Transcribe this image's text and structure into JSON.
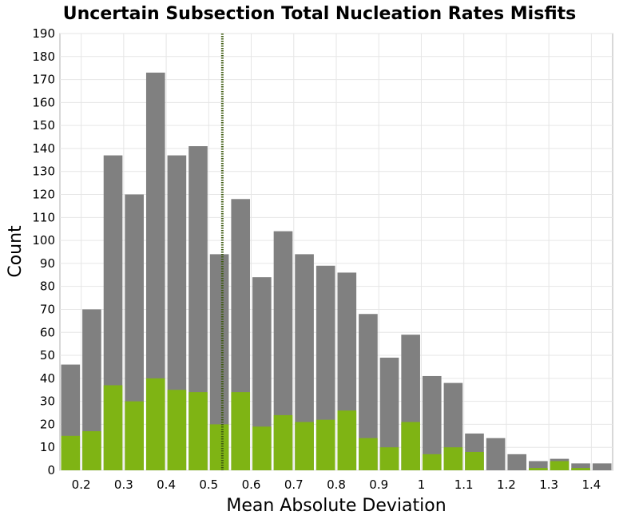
{
  "chart_data": {
    "type": "bar",
    "title": "Uncertain Subsection Total Nucleation Rates Misfits",
    "xlabel": "Mean Absolute Deviation",
    "ylabel": "Count",
    "xlim": [
      0.15,
      1.45
    ],
    "ylim": [
      0,
      190
    ],
    "bin_width": 0.05,
    "x_ticks": [
      0.2,
      0.3,
      0.4,
      0.5,
      0.6,
      0.7,
      0.8,
      0.9,
      1,
      1.1,
      1.2,
      1.3,
      1.4
    ],
    "x_tick_labels": [
      "0.2",
      "0.3",
      "0.4",
      "0.5",
      "0.6",
      "0.7",
      "0.8",
      "0.9",
      "1",
      "1.1",
      "1.2",
      "1.3",
      "1.4"
    ],
    "y_ticks": [
      0,
      10,
      20,
      30,
      40,
      50,
      60,
      70,
      80,
      90,
      100,
      110,
      120,
      130,
      140,
      150,
      160,
      170,
      180,
      190
    ],
    "grid": true,
    "bin_centers": [
      0.175,
      0.225,
      0.275,
      0.325,
      0.375,
      0.425,
      0.475,
      0.525,
      0.575,
      0.625,
      0.675,
      0.725,
      0.775,
      0.825,
      0.875,
      0.925,
      0.975,
      1.025,
      1.075,
      1.125,
      1.175,
      1.225,
      1.275,
      1.325,
      1.375,
      1.425
    ],
    "series": [
      {
        "color": "#808080",
        "values": [
          46,
          70,
          137,
          120,
          173,
          137,
          141,
          94,
          118,
          84,
          104,
          94,
          89,
          86,
          68,
          49,
          59,
          41,
          38,
          16,
          14,
          7,
          4,
          5,
          3,
          3
        ]
      },
      {
        "color": "#7fb414",
        "values": [
          15,
          17,
          37,
          30,
          40,
          35,
          34,
          20,
          34,
          19,
          24,
          21,
          22,
          26,
          14,
          10,
          21,
          7,
          10,
          8,
          0,
          0,
          1,
          4,
          1,
          0
        ]
      }
    ],
    "reference_line": {
      "x": 0.532,
      "color": "#3d5a10",
      "style": "dotted"
    }
  }
}
